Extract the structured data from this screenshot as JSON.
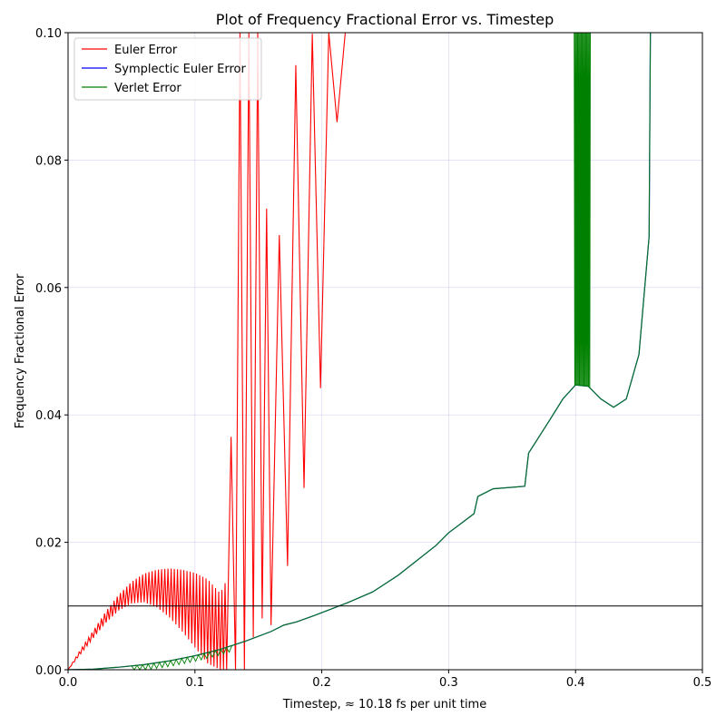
{
  "chart_data": {
    "type": "line",
    "title": "Plot of Frequency Fractional Error vs. Timestep",
    "xlabel": "Timestep, ≈ 10.18 fs per unit time",
    "ylabel": "Frequency Fractional Error",
    "xlim": [
      0.0,
      0.5
    ],
    "ylim": [
      0.0,
      0.1
    ],
    "x_ticks": [
      "0.0",
      "0.1",
      "0.2",
      "0.3",
      "0.4",
      "0.5"
    ],
    "y_ticks": [
      "0.00",
      "0.02",
      "0.04",
      "0.06",
      "0.08",
      "0.10"
    ],
    "grid": true,
    "legend_position": "top-left",
    "reference_line_y": 0.01,
    "series": [
      {
        "name": "Euler Error",
        "color": "#ff0000",
        "style": "oscillating",
        "upper": [
          [
            0.0,
            0.0
          ],
          [
            0.01,
            0.0032
          ],
          [
            0.02,
            0.0062
          ],
          [
            0.03,
            0.0092
          ],
          [
            0.04,
            0.0118
          ],
          [
            0.05,
            0.0138
          ],
          [
            0.06,
            0.0151
          ],
          [
            0.07,
            0.0157
          ],
          [
            0.08,
            0.0159
          ],
          [
            0.09,
            0.0157
          ],
          [
            0.1,
            0.0152
          ],
          [
            0.11,
            0.0142
          ],
          [
            0.12,
            0.012
          ],
          [
            0.128,
            0.0154
          ],
          [
            0.13,
            0.1
          ],
          [
            0.15,
            0.1
          ],
          [
            0.16,
            0.0575
          ],
          [
            0.17,
            0.074
          ],
          [
            0.18,
            0.096
          ],
          [
            0.193,
            0.1
          ],
          [
            0.205,
            0.1
          ],
          [
            0.215,
            0.1
          ],
          [
            0.222,
            0.1
          ]
        ],
        "lower": [
          [
            0.0,
            0.0
          ],
          [
            0.01,
            0.0025
          ],
          [
            0.02,
            0.005
          ],
          [
            0.03,
            0.0074
          ],
          [
            0.04,
            0.0093
          ],
          [
            0.05,
            0.0104
          ],
          [
            0.06,
            0.0106
          ],
          [
            0.07,
            0.0098
          ],
          [
            0.08,
            0.0082
          ],
          [
            0.09,
            0.006
          ],
          [
            0.1,
            0.0035
          ],
          [
            0.11,
            0.001
          ],
          [
            0.12,
            0.0
          ],
          [
            0.13,
            0.0
          ],
          [
            0.14,
            0.0
          ],
          [
            0.15,
            0.0085
          ],
          [
            0.16,
            0.007
          ],
          [
            0.17,
            0.0135
          ],
          [
            0.18,
            0.0228
          ],
          [
            0.193,
            0.0352
          ],
          [
            0.205,
            0.0532
          ],
          [
            0.215,
            0.1
          ],
          [
            0.222,
            0.079
          ]
        ]
      },
      {
        "name": "Symplectic Euler Error",
        "color": "#0000ff",
        "style": "line",
        "points": [
          [
            0.0,
            0.0
          ],
          [
            0.02,
            0.0001
          ],
          [
            0.04,
            0.0004
          ],
          [
            0.06,
            0.0008
          ],
          [
            0.08,
            0.0014
          ],
          [
            0.1,
            0.0022
          ],
          [
            0.12,
            0.0032
          ],
          [
            0.14,
            0.0045
          ],
          [
            0.16,
            0.006
          ],
          [
            0.17,
            0.007
          ],
          [
            0.18,
            0.0075
          ],
          [
            0.194,
            0.0085
          ],
          [
            0.207,
            0.0095
          ],
          [
            0.22,
            0.0105
          ],
          [
            0.24,
            0.0122
          ],
          [
            0.26,
            0.0148
          ],
          [
            0.29,
            0.0195
          ],
          [
            0.3,
            0.0215
          ],
          [
            0.32,
            0.0245
          ],
          [
            0.323,
            0.0272
          ],
          [
            0.335,
            0.0284
          ],
          [
            0.36,
            0.0288
          ],
          [
            0.363,
            0.034
          ],
          [
            0.38,
            0.0393
          ],
          [
            0.39,
            0.0425
          ],
          [
            0.4,
            0.0447
          ],
          [
            0.41,
            0.0445
          ],
          [
            0.42,
            0.0425
          ],
          [
            0.43,
            0.0412
          ],
          [
            0.44,
            0.0425
          ],
          [
            0.45,
            0.0495
          ],
          [
            0.458,
            0.068
          ],
          [
            0.459,
            0.1
          ]
        ]
      },
      {
        "name": "Verlet Error",
        "color": "#008000",
        "style": "line",
        "points": [
          [
            0.0,
            0.0
          ],
          [
            0.02,
            0.0001
          ],
          [
            0.04,
            0.0004
          ],
          [
            0.06,
            0.0008
          ],
          [
            0.08,
            0.0014
          ],
          [
            0.1,
            0.0022
          ],
          [
            0.12,
            0.0032
          ],
          [
            0.14,
            0.0045
          ],
          [
            0.16,
            0.006
          ],
          [
            0.17,
            0.007
          ],
          [
            0.18,
            0.0075
          ],
          [
            0.194,
            0.0085
          ],
          [
            0.207,
            0.0095
          ],
          [
            0.22,
            0.0105
          ],
          [
            0.24,
            0.0122
          ],
          [
            0.26,
            0.0148
          ],
          [
            0.29,
            0.0195
          ],
          [
            0.3,
            0.0215
          ],
          [
            0.32,
            0.0245
          ],
          [
            0.323,
            0.0272
          ],
          [
            0.335,
            0.0284
          ],
          [
            0.36,
            0.0288
          ],
          [
            0.363,
            0.034
          ],
          [
            0.38,
            0.0393
          ],
          [
            0.39,
            0.0425
          ],
          [
            0.4,
            0.0447
          ],
          [
            0.41,
            0.0445
          ],
          [
            0.42,
            0.0425
          ],
          [
            0.43,
            0.0412
          ],
          [
            0.44,
            0.0425
          ],
          [
            0.45,
            0.0495
          ],
          [
            0.458,
            0.068
          ],
          [
            0.459,
            0.1
          ]
        ],
        "noisy_band_x": [
          0.399,
          0.412
        ]
      }
    ]
  }
}
